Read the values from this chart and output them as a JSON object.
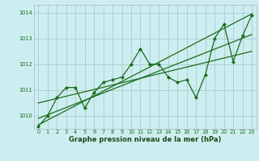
{
  "title": "Graphe pression niveau de la mer (hPa)",
  "background_color": "#cdeef0",
  "grid_color": "#aacccc",
  "line_color": "#1a6b1a",
  "xlim": [
    -0.5,
    23.5
  ],
  "ylim": [
    1009.5,
    1014.3
  ],
  "yticks": [
    1010,
    1011,
    1012,
    1013,
    1014
  ],
  "xticks": [
    0,
    1,
    2,
    3,
    4,
    5,
    6,
    7,
    8,
    9,
    10,
    11,
    12,
    13,
    14,
    15,
    16,
    17,
    18,
    19,
    20,
    21,
    22,
    23
  ],
  "series1": [
    1009.6,
    1010.0,
    1010.7,
    1011.1,
    1011.1,
    1010.3,
    1010.9,
    1011.3,
    1011.4,
    1011.5,
    1012.0,
    1012.6,
    1012.0,
    1012.0,
    1011.5,
    1011.3,
    1011.4,
    1010.7,
    1011.6,
    1013.0,
    1013.55,
    1012.1,
    1013.1,
    1013.9
  ],
  "trend1_x": [
    0,
    23
  ],
  "trend1_y": [
    1009.65,
    1013.95
  ],
  "trend2_x": [
    0,
    23
  ],
  "trend2_y": [
    1009.9,
    1013.15
  ],
  "trend3_x": [
    0,
    23
  ],
  "trend3_y": [
    1010.5,
    1012.5
  ],
  "title_fontsize": 6.0,
  "tick_fontsize": 4.8,
  "figwidth": 3.2,
  "figheight": 2.0,
  "dpi": 100
}
